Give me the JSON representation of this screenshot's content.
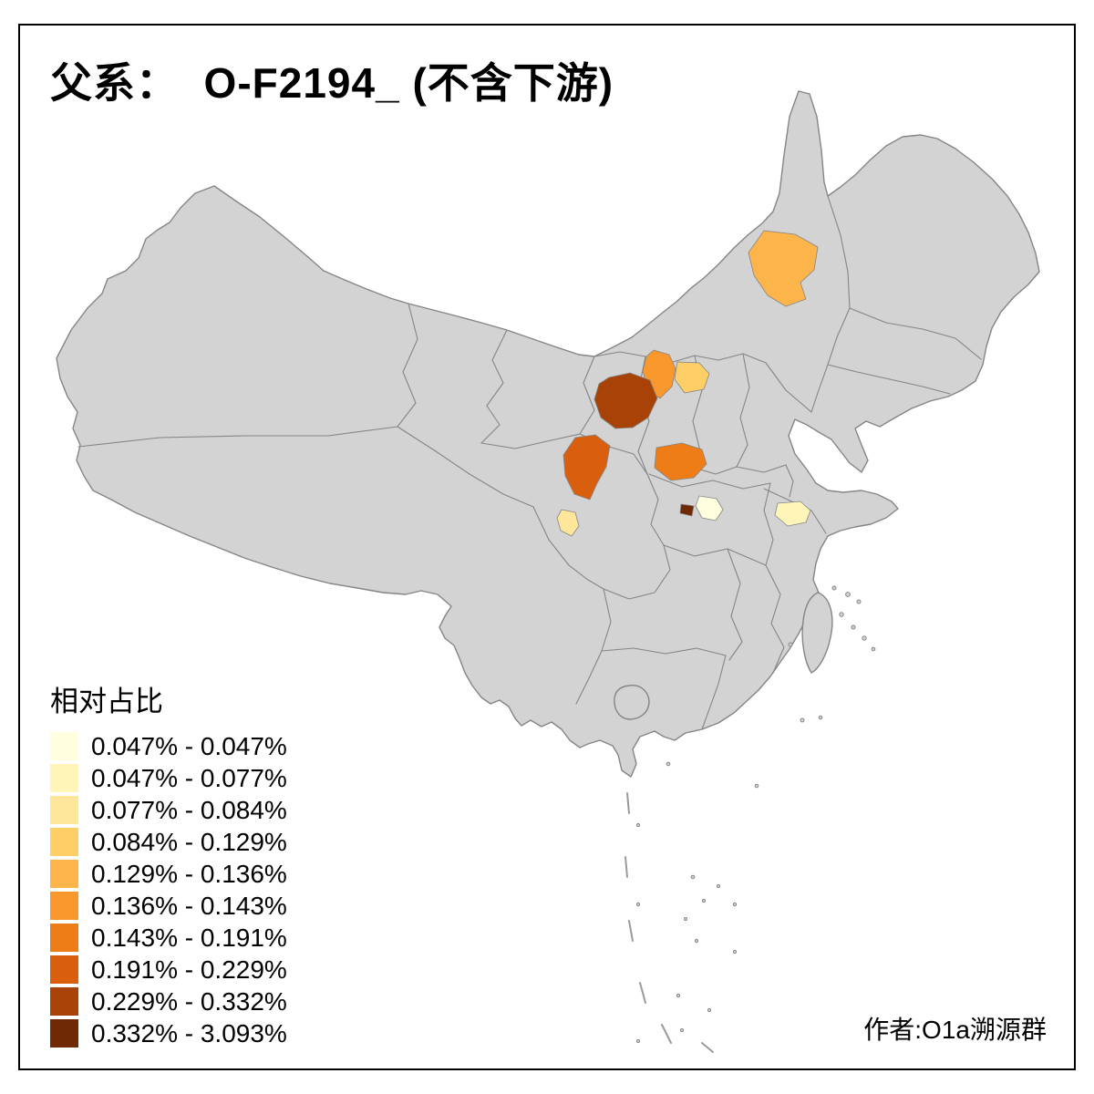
{
  "title": "父系：  O-F2194_ (不含下游)",
  "author": "作者:O1a溯源群",
  "legend": {
    "title": "相对占比",
    "items": [
      {
        "range": "0.047% - 0.047%",
        "color": "#FFFFE0"
      },
      {
        "range": "0.047% - 0.077%",
        "color": "#FFF5B8"
      },
      {
        "range": "0.077% - 0.084%",
        "color": "#FEE79A"
      },
      {
        "range": "0.084% - 0.129%",
        "color": "#FDCF66"
      },
      {
        "range": "0.129% - 0.136%",
        "color": "#FDB44A"
      },
      {
        "range": "0.136% - 0.143%",
        "color": "#F9982C"
      },
      {
        "range": "0.143% - 0.191%",
        "color": "#EF7D17"
      },
      {
        "range": "0.191% - 0.229%",
        "color": "#D95F0E"
      },
      {
        "range": "0.229% - 0.332%",
        "color": "#A84206"
      },
      {
        "range": "0.332% - 3.093%",
        "color": "#6F2A05"
      }
    ]
  },
  "map": {
    "land_color": "#d3d3d3",
    "border_color": "#858585",
    "regions": [
      {
        "id": "region-inner-mongolia-central",
        "range": "0.129% - 0.136%",
        "color": "#FDB44A"
      },
      {
        "id": "region-north-shaanxi",
        "range": "0.084% - 0.129%",
        "color": "#FDCF66"
      },
      {
        "id": "region-ningxia",
        "range": "0.136% - 0.143%",
        "color": "#F9982C"
      },
      {
        "id": "region-southeast-gansu",
        "range": "0.229% - 0.332%",
        "color": "#A84206"
      },
      {
        "id": "region-south-shaanxi",
        "range": "0.191% - 0.229%",
        "color": "#D95F0E"
      },
      {
        "id": "region-northwest-hubei",
        "range": "0.143% - 0.191%",
        "color": "#EF7D17"
      },
      {
        "id": "region-west-hubei-small",
        "range": "0.332% - 3.093%",
        "color": "#6F2A05"
      },
      {
        "id": "region-central-hubei-pale",
        "range": "0.047% - 0.047%",
        "color": "#FFFFE0"
      },
      {
        "id": "region-chengdu-area",
        "range": "0.077% - 0.084%",
        "color": "#FEE79A"
      },
      {
        "id": "region-south-jiangsu",
        "range": "0.047% - 0.077%",
        "color": "#FFF5B8"
      }
    ]
  }
}
